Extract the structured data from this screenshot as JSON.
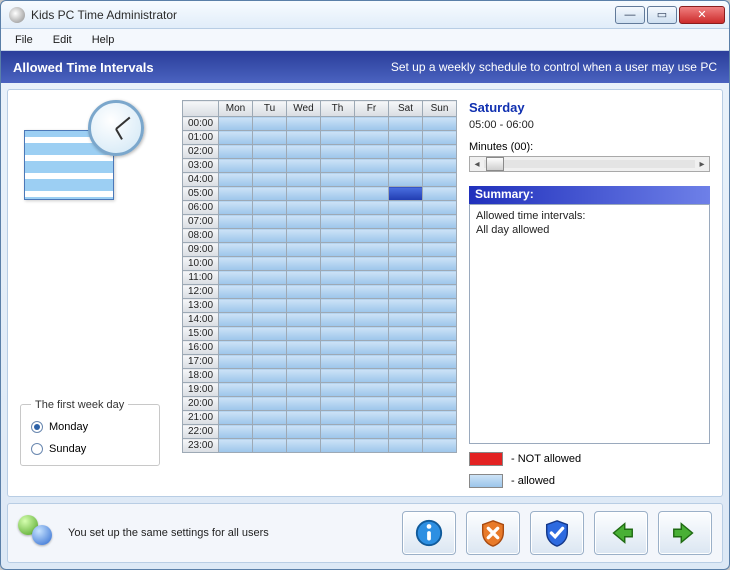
{
  "window": {
    "title": "Kids PC Time Administrator"
  },
  "menu": {
    "file": "File",
    "edit": "Edit",
    "help": "Help"
  },
  "header": {
    "title": "Allowed Time Intervals",
    "subtitle": "Set up a weekly schedule to control when a user may use PC"
  },
  "firstDay": {
    "legend": "The first week day",
    "monday": "Monday",
    "sunday": "Sunday",
    "selected": "monday"
  },
  "schedule": {
    "days": [
      "Mon",
      "Tu",
      "Wed",
      "Th",
      "Fr",
      "Sat",
      "Sun"
    ],
    "hours": [
      "00:00",
      "01:00",
      "02:00",
      "03:00",
      "04:00",
      "05:00",
      "06:00",
      "07:00",
      "08:00",
      "09:00",
      "10:00",
      "11:00",
      "12:00",
      "13:00",
      "14:00",
      "15:00",
      "16:00",
      "17:00",
      "18:00",
      "19:00",
      "20:00",
      "21:00",
      "22:00",
      "23:00"
    ],
    "selected": {
      "day": 5,
      "hour": 5
    }
  },
  "side": {
    "dayName": "Saturday",
    "range": "05:00 - 06:00",
    "minutesLabel": "Minutes (00):",
    "summaryHeader": "Summary:",
    "summaryLine1": "Allowed time intervals:",
    "summaryLine2": "All day allowed",
    "legendNot": "- NOT allowed",
    "legendAllowed": "- allowed"
  },
  "footer": {
    "text": "You set up the same settings for all users"
  },
  "colors": {
    "headerGradFrom": "#2a3e9a",
    "headerGradTo": "#4b63c0",
    "cellAllowedFrom": "#cde3f7",
    "cellAllowedTo": "#9cc5ea",
    "cellSelectedFrom": "#4a6fe0",
    "cellSelectedTo": "#203bb0",
    "notAllowed": "#e32222"
  }
}
